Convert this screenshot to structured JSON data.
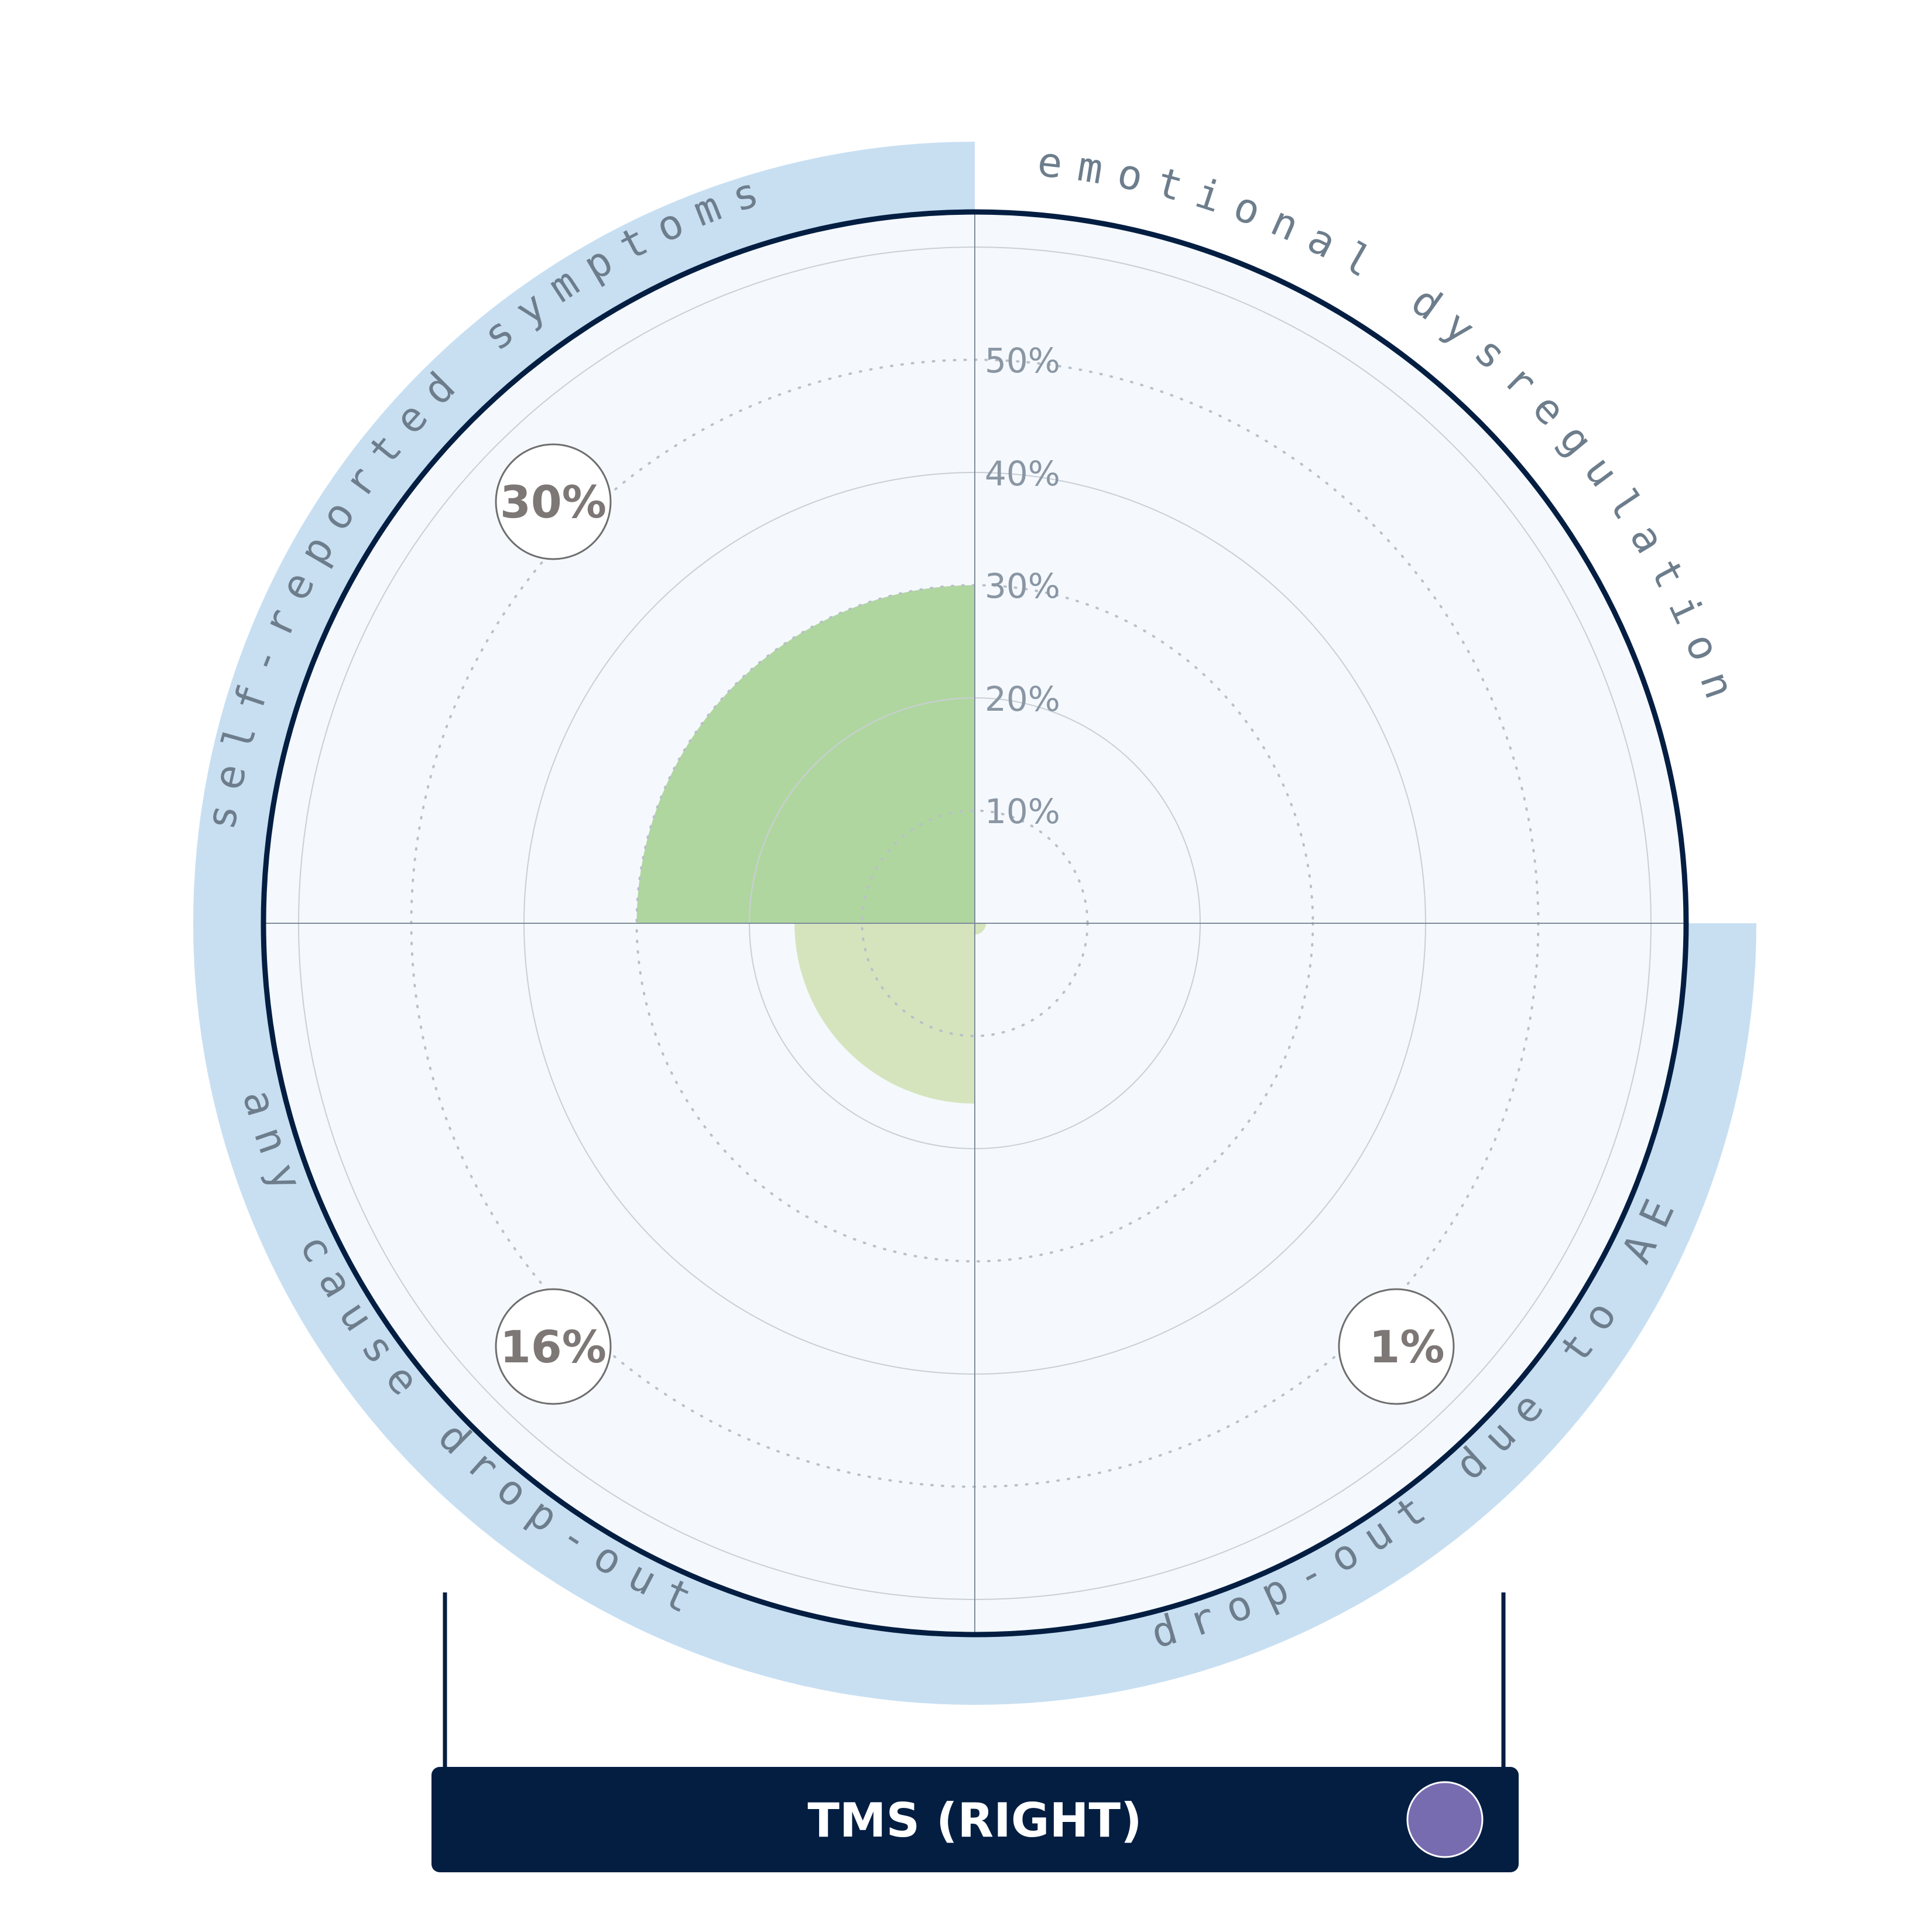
{
  "chart_data": {
    "type": "polar-area",
    "title": "TMS (RIGHT)",
    "r_ticks": [
      "10%",
      "20%",
      "30%",
      "40%",
      "50%"
    ],
    "r_max": 60,
    "categories": [
      "emotional dysregulation",
      "drop-out due to AE",
      "any cause drop-out",
      "self-reported symptoms"
    ],
    "values": [
      null,
      1,
      16,
      30
    ],
    "value_labels": [
      "",
      "1%",
      "16%",
      "30%"
    ],
    "colors": {
      "self-reported symptoms": "#b0d6a0",
      "any cause drop-out": "#d5e4bd",
      "drop-out due to AE": "#d5e4bd"
    },
    "legend_color": "#786cb0",
    "label_band_color": "#c8dff2",
    "banner_color": "#041e42",
    "grid": true
  }
}
